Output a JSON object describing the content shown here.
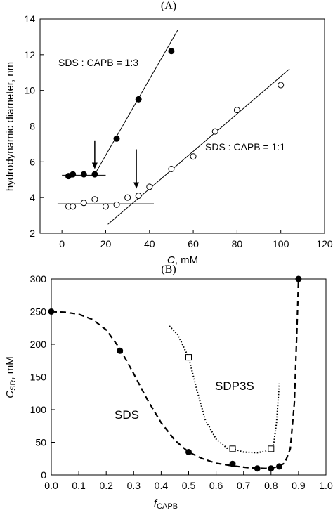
{
  "chart_data": [
    {
      "panel_label": "(A)",
      "type": "scatter",
      "xlabel": "C, mM",
      "xlabel_italic": "C",
      "xlabel_rest": ", mM",
      "ylabel": "hydrodynamic diameter, nm",
      "xlim": [
        -10,
        120
      ],
      "ylim": [
        2,
        14
      ],
      "xticks": [
        0,
        20,
        40,
        60,
        80,
        100,
        120
      ],
      "yticks": [
        2,
        4,
        6,
        8,
        10,
        12,
        14
      ],
      "grid": false,
      "series": [
        {
          "marker": "filled-circle",
          "points": [
            [
              3,
              5.2
            ],
            [
              5,
              5.3
            ],
            [
              10,
              5.3
            ],
            [
              15,
              5.3
            ],
            [
              25,
              7.3
            ],
            [
              35,
              9.5
            ],
            [
              50,
              12.2
            ]
          ],
          "label": "SDS : CAPB = 1:3"
        },
        {
          "marker": "open-circle",
          "points": [
            [
              3,
              3.5
            ],
            [
              5,
              3.5
            ],
            [
              10,
              3.7
            ],
            [
              15,
              3.9
            ],
            [
              20,
              3.5
            ],
            [
              25,
              3.6
            ],
            [
              30,
              4.0
            ],
            [
              35,
              4.1
            ],
            [
              40,
              4.6
            ],
            [
              50,
              5.6
            ],
            [
              60,
              6.3
            ],
            [
              70,
              7.7
            ],
            [
              80,
              8.9
            ],
            [
              100,
              10.3
            ]
          ],
          "label": "SDS : CAPB = 1:1"
        }
      ],
      "fit_lines": [
        {
          "x": [
            0,
            20
          ],
          "y": [
            5.25,
            5.25
          ]
        },
        {
          "x": [
            15,
            53
          ],
          "y": [
            5.3,
            13.4
          ]
        },
        {
          "x": [
            -2,
            42
          ],
          "y": [
            3.65,
            3.65
          ]
        },
        {
          "x": [
            21,
            104
          ],
          "y": [
            2.5,
            11.2
          ]
        }
      ],
      "arrows": [
        {
          "x": 15,
          "y_from": 7.2,
          "y_to": 5.6
        },
        {
          "x": 34,
          "y_from": 6.7,
          "y_to": 4.5
        }
      ]
    },
    {
      "panel_label": "(B)",
      "type": "scatter",
      "xlabel": "fCAPB",
      "xlabel_main": "f",
      "xlabel_sub": "CAPB",
      "ylabel": "CSR, mM",
      "ylabel_main": "C",
      "ylabel_sub": "SR",
      "ylabel_rest": ", mM",
      "xlim": [
        0,
        1
      ],
      "ylim": [
        0,
        300
      ],
      "xticks": [
        "0.0",
        "0.1",
        "0.2",
        "0.3",
        "0.4",
        "0.5",
        "0.6",
        "0.7",
        "0.8",
        "0.9",
        "1.0"
      ],
      "yticks": [
        0,
        50,
        100,
        150,
        200,
        250,
        300
      ],
      "grid": false,
      "series": [
        {
          "marker": "filled-circle",
          "points": [
            [
              0.0,
              250
            ],
            [
              0.25,
              190
            ],
            [
              0.5,
              35
            ],
            [
              0.66,
              17
            ],
            [
              0.75,
              10
            ],
            [
              0.8,
              10
            ],
            [
              0.83,
              13
            ],
            [
              0.9,
              300
            ]
          ],
          "label": "SDS"
        },
        {
          "marker": "open-square",
          "points": [
            [
              0.5,
              180
            ],
            [
              0.66,
              40
            ],
            [
              0.8,
              40
            ]
          ],
          "label": "SDP3S"
        }
      ]
    }
  ]
}
